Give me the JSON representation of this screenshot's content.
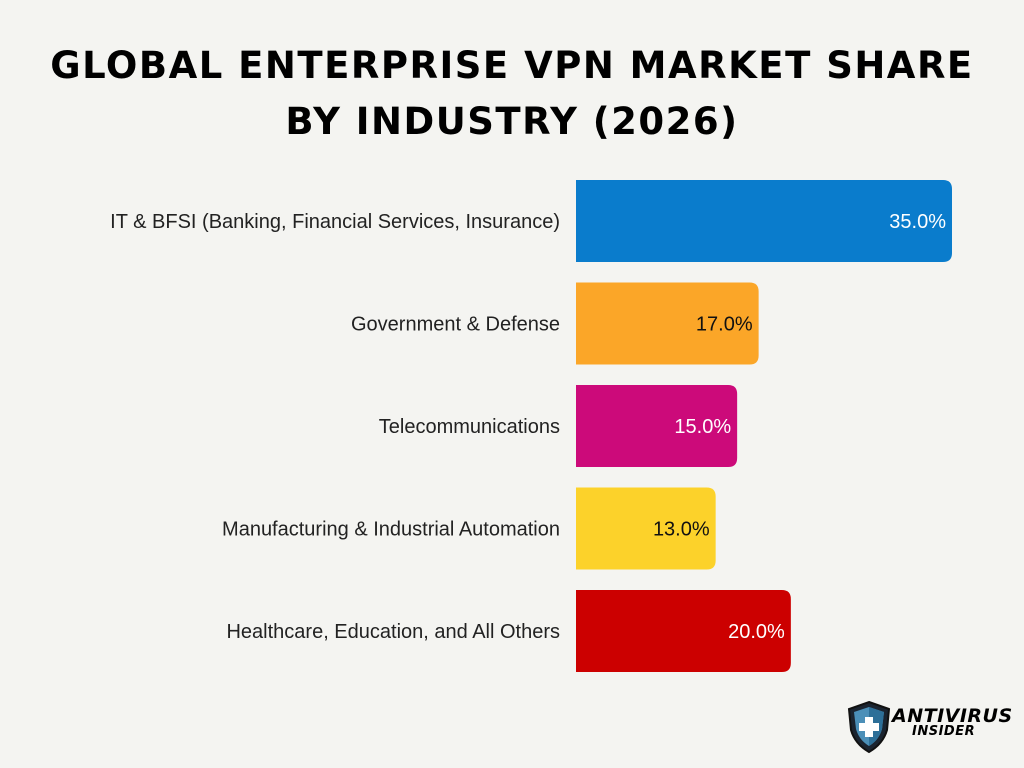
{
  "title": {
    "line1": "Global Enterprise VPN Market Share",
    "line2": "by Industry (2026)"
  },
  "logo": {
    "line1": "ANTIVIRUS",
    "line2": "INSIDER",
    "icon": "shield-plus-icon"
  },
  "chart_data": {
    "type": "bar",
    "orientation": "horizontal",
    "title": "Global Enterprise VPN Market Share by Industry (2026)",
    "xlabel": "",
    "ylabel": "",
    "grid": false,
    "legend": "none",
    "xlim": [
      0,
      35
    ],
    "categories": [
      "IT & BFSI (Banking, Financial Services, Insurance)",
      "Government & Defense",
      "Telecommunications",
      "Manufacturing & Industrial Automation",
      "Healthcare, Education, and All Others"
    ],
    "values": [
      35.0,
      17.0,
      15.0,
      13.0,
      20.0
    ],
    "value_labels": [
      "35.0%",
      "17.0%",
      "15.0%",
      "13.0%",
      "20.0%"
    ],
    "colors": [
      "#0a7ccc",
      "#fba628",
      "#cc0a7a",
      "#fcd22a",
      "#cc0000"
    ],
    "label_colors": [
      "#ffffff",
      "#111111",
      "#ffffff",
      "#111111",
      "#ffffff"
    ]
  }
}
